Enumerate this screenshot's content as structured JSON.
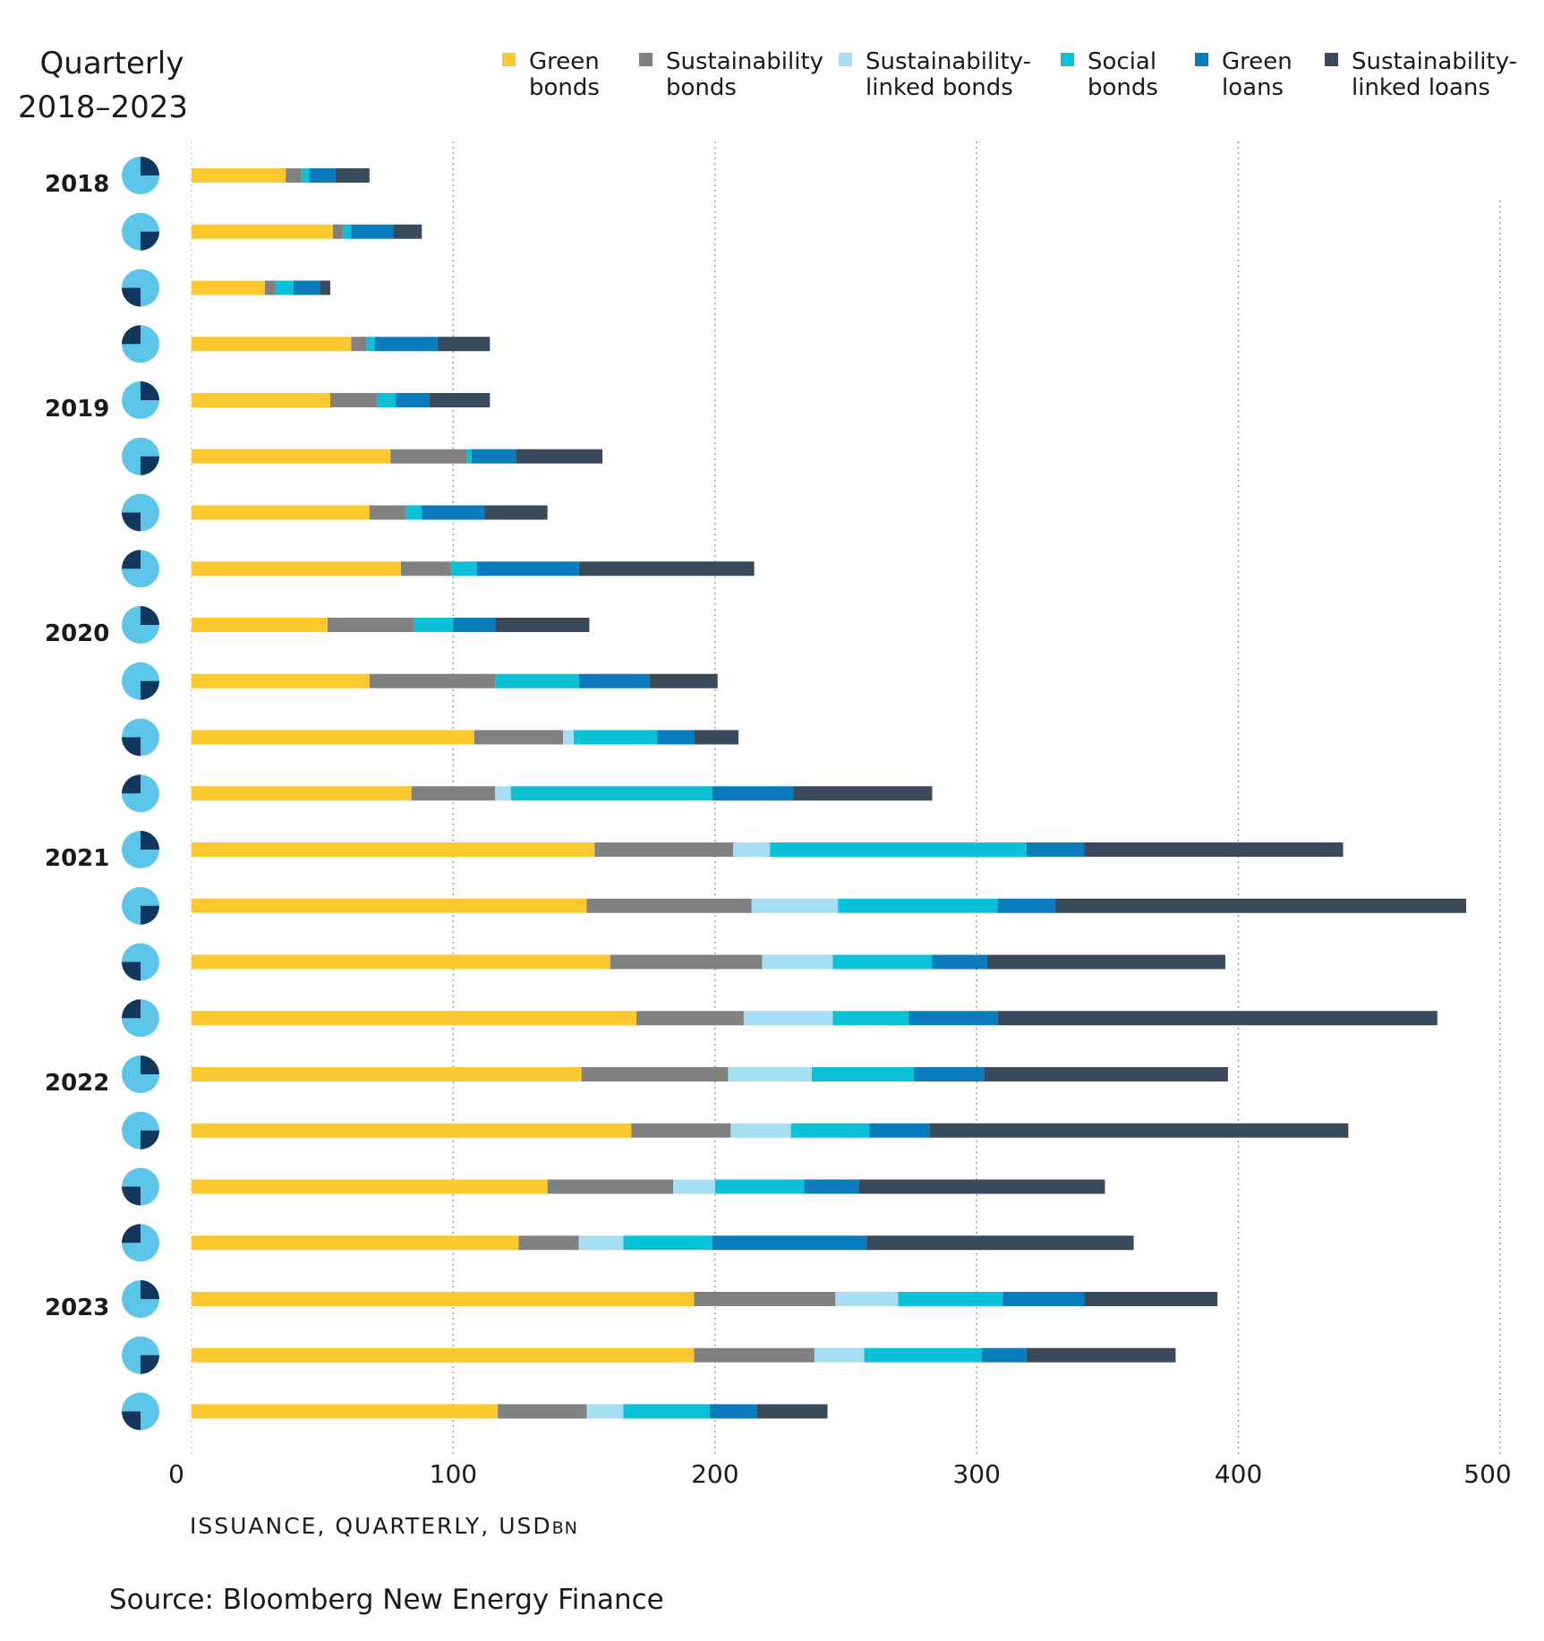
{
  "chart_data": {
    "type": "bar",
    "orientation": "horizontal",
    "stacked": true,
    "title_lines": [
      "Quarterly",
      "2018–2023"
    ],
    "xlabel": "ISSUANCE, QUARTERLY, USD",
    "xlabel_unit": "BN",
    "xlim": [
      0,
      500
    ],
    "xticks": [
      0,
      100,
      200,
      300,
      400,
      500
    ],
    "grid": "vertical-dotted",
    "legend_position": "top",
    "years": [
      "2018",
      "2019",
      "2020",
      "2021",
      "2022",
      "2023"
    ],
    "quarters_per_year": 4,
    "series": [
      {
        "name_lines": [
          "Green",
          "bonds"
        ],
        "color": "#fcc82e",
        "values": [
          36,
          54,
          28,
          61,
          53,
          76,
          68,
          80,
          52,
          68,
          108,
          84,
          154,
          151,
          160,
          170,
          149,
          168,
          136,
          125,
          192,
          192,
          117
        ]
      },
      {
        "name_lines": [
          "Sustainability",
          "bonds"
        ],
        "color": "#818181",
        "values": [
          6,
          4,
          4,
          6,
          18,
          29,
          14,
          19,
          33,
          48,
          34,
          32,
          53,
          63,
          58,
          41,
          56,
          38,
          48,
          23,
          54,
          46,
          34
        ]
      },
      {
        "name_lines": [
          "Sustainability-",
          "linked bonds"
        ],
        "color": "#a6def3",
        "values": [
          0,
          0,
          0,
          0,
          0,
          0,
          0,
          0,
          0,
          0,
          4,
          6,
          14,
          33,
          27,
          34,
          32,
          23,
          16,
          17,
          24,
          19,
          14
        ]
      },
      {
        "name_lines": [
          "Social",
          "bonds"
        ],
        "color": "#09c2d8",
        "values": [
          3,
          3,
          7,
          3,
          7,
          2,
          6,
          10,
          15,
          32,
          32,
          77,
          98,
          61,
          38,
          29,
          39,
          30,
          34,
          34,
          40,
          45,
          33
        ]
      },
      {
        "name_lines": [
          "Green",
          "loans"
        ],
        "color": "#0a7bbd",
        "values": [
          10,
          16,
          10,
          24,
          13,
          17,
          24,
          39,
          16,
          27,
          14,
          31,
          22,
          22,
          21,
          34,
          27,
          23,
          21,
          59,
          31,
          17,
          18
        ]
      },
      {
        "name_lines": [
          "Sustainability-",
          "linked loans"
        ],
        "color": "#394a5a",
        "values": [
          13,
          11,
          4,
          20,
          23,
          33,
          24,
          67,
          36,
          26,
          17,
          53,
          99,
          157,
          91,
          168,
          93,
          160,
          94,
          102,
          51,
          57,
          27
        ]
      }
    ],
    "pie_icons": {
      "base_color": "#5cc6ea",
      "quarter_color": "#12375e"
    }
  },
  "source": "Source: Bloomberg New Energy Finance"
}
